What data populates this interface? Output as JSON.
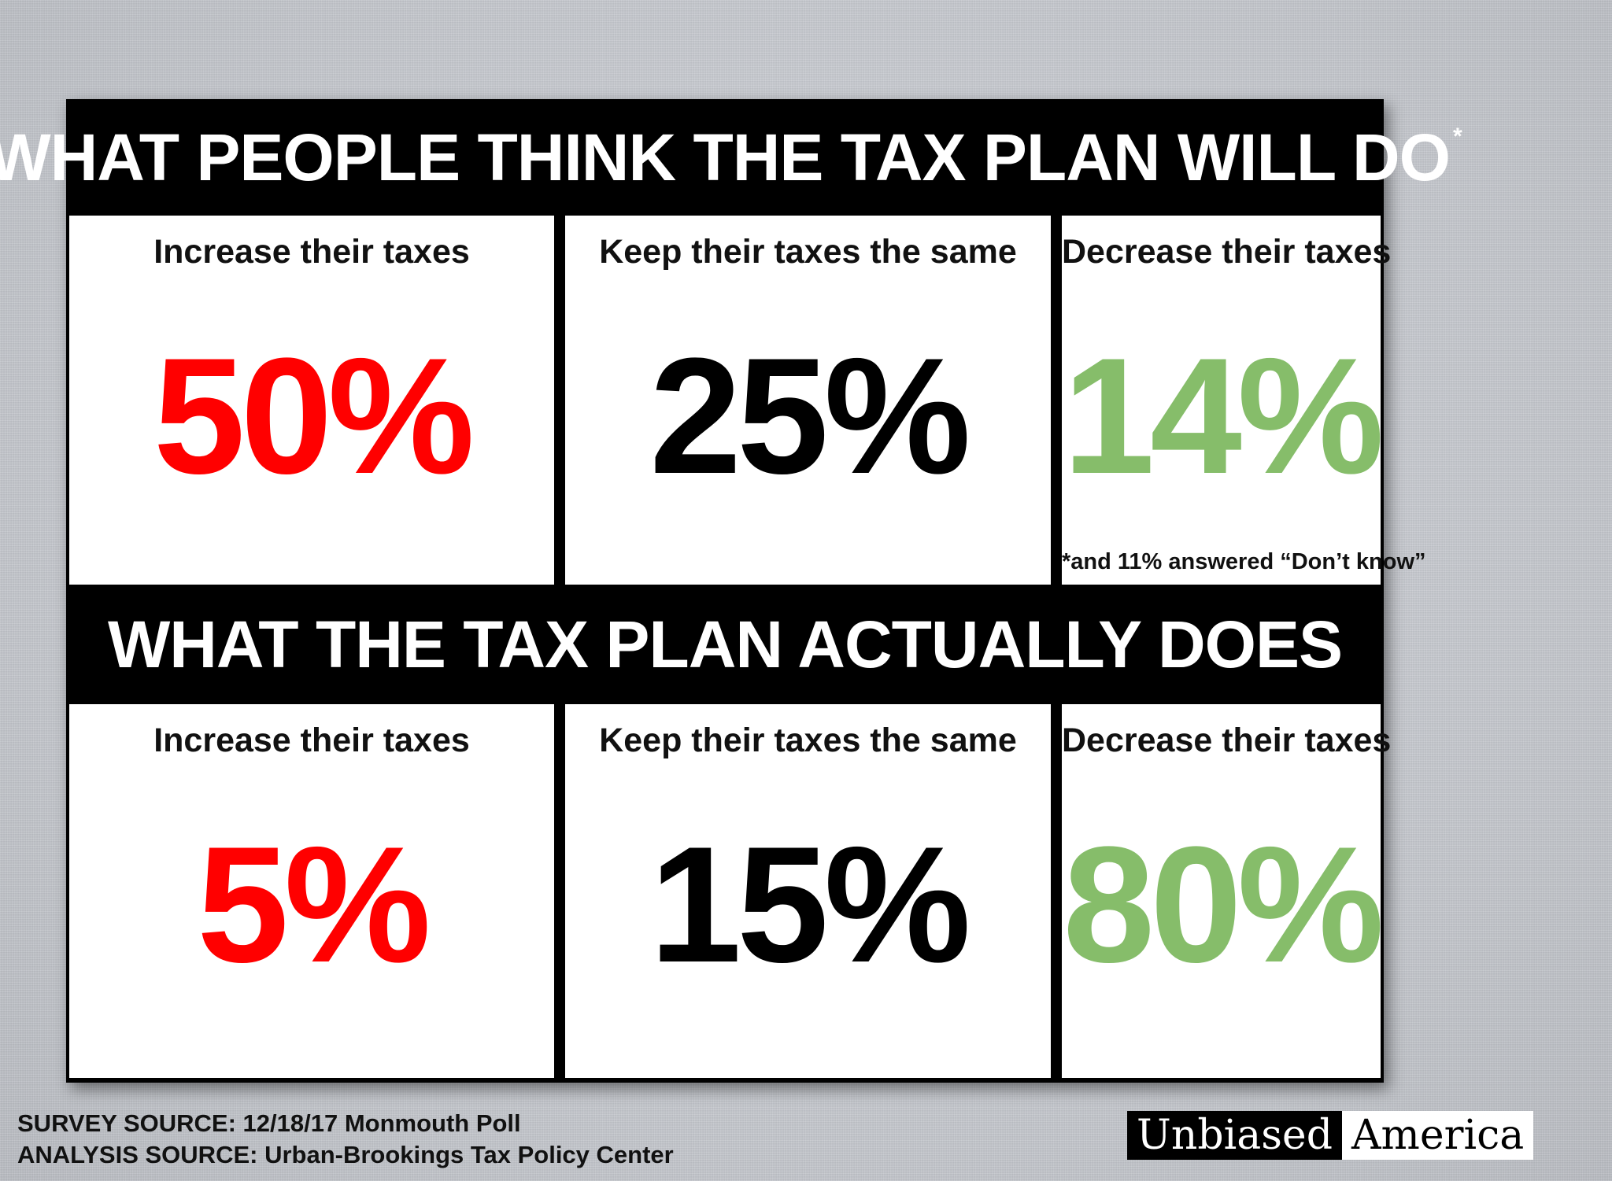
{
  "top_section": {
    "title": "WHAT PEOPLE THINK THE TAX PLAN WILL DO",
    "asterisk": "*",
    "panels": [
      {
        "label": "Increase their taxes",
        "value": "50%",
        "color": "#ff0000"
      },
      {
        "label": "Keep their taxes the same",
        "value": "25%",
        "color": "#000000"
      },
      {
        "label": "Decrease their taxes",
        "value": "14%",
        "color": "#86bd6a"
      }
    ],
    "footnote": "*and 11% answered “Don’t know”"
  },
  "bottom_section": {
    "title": "WHAT THE TAX PLAN ACTUALLY DOES",
    "panels": [
      {
        "label": "Increase their taxes",
        "value": "5%",
        "color": "#ff0000"
      },
      {
        "label": "Keep their taxes the same",
        "value": "15%",
        "color": "#000000"
      },
      {
        "label": "Decrease their taxes",
        "value": "80%",
        "color": "#86bd6a"
      }
    ]
  },
  "sources": {
    "survey": "SURVEY SOURCE: 12/18/17 Monmouth Poll",
    "analysis": "ANALYSIS SOURCE: Urban-Brookings Tax Policy Center"
  },
  "logo": {
    "left": "Unbiased",
    "right": "America"
  }
}
